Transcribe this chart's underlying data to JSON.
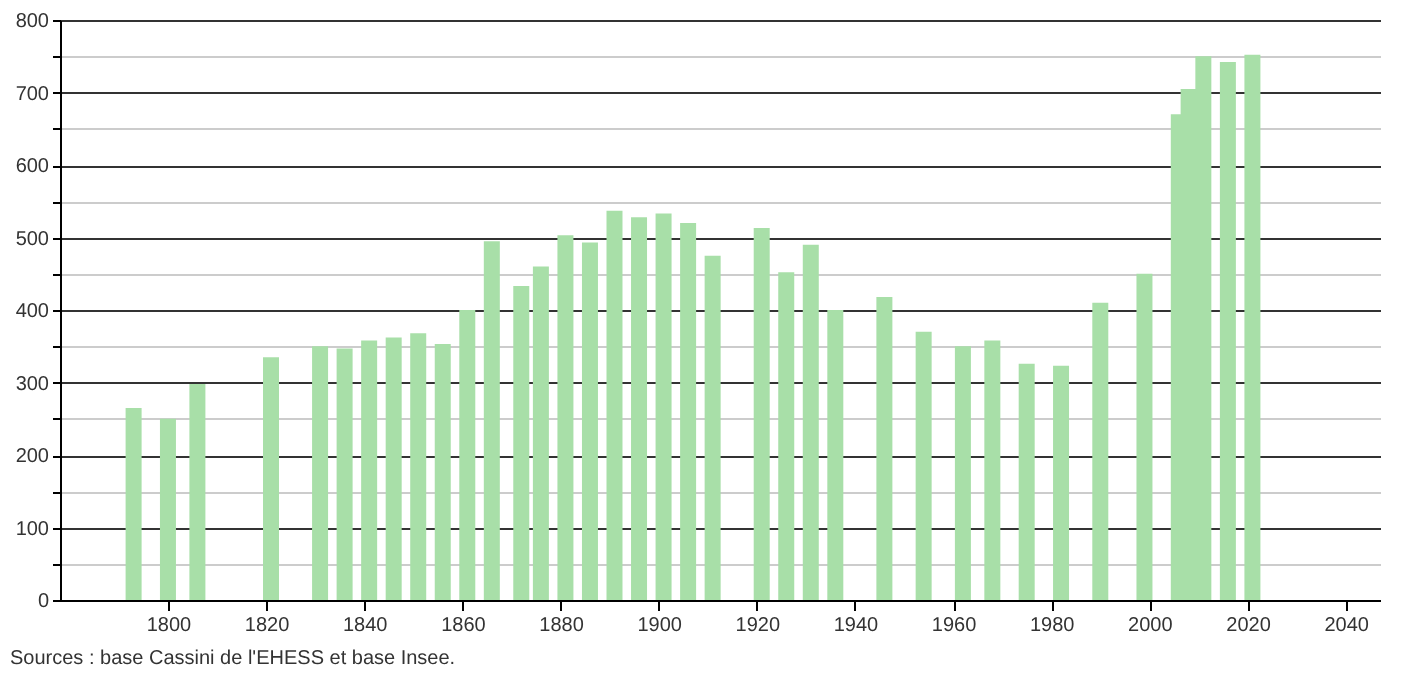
{
  "chart_data": {
    "type": "bar",
    "x": [
      1793,
      1800,
      1806,
      1821,
      1831,
      1836,
      1841,
      1846,
      1851,
      1856,
      1861,
      1866,
      1872,
      1876,
      1881,
      1886,
      1891,
      1896,
      1901,
      1906,
      1911,
      1921,
      1926,
      1931,
      1936,
      1946,
      1954,
      1962,
      1968,
      1975,
      1982,
      1990,
      1999,
      2006,
      2008,
      2011,
      2016,
      2021
    ],
    "values": [
      265,
      250,
      298,
      335,
      350,
      347,
      358,
      362,
      368,
      353,
      400,
      495,
      433,
      460,
      503,
      493,
      537,
      528,
      533,
      520,
      475,
      513,
      452,
      490,
      400,
      418,
      370,
      350,
      358,
      326,
      323,
      410,
      450,
      670,
      705,
      750,
      742,
      752
    ],
    "color": "#a8dfa8",
    "xlim": [
      1778,
      2047
    ],
    "xticks": [
      1800,
      1820,
      1840,
      1860,
      1880,
      1900,
      1920,
      1940,
      1960,
      1980,
      2000,
      2020,
      2040
    ],
    "ylim": [
      0,
      800
    ],
    "yticks": [
      0,
      {
        "value": 50,
        "label": null
      },
      100,
      {
        "value": 150,
        "label": null
      },
      200,
      {
        "value": 250,
        "label": null
      },
      300,
      {
        "value": 350,
        "label": null
      },
      400,
      {
        "value": 450,
        "label": null
      },
      500,
      {
        "value": 550,
        "label": null
      },
      600,
      {
        "value": 650,
        "label": null
      },
      700,
      {
        "value": 750,
        "label": null
      },
      800
    ],
    "grid": "y",
    "annotations": [
      "Sources : base Cassini de l'EHESS et base Insee."
    ]
  }
}
